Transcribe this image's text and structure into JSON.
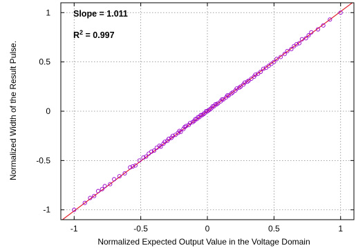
{
  "chart_data": {
    "type": "scatter",
    "xlabel": "Normalized Expected Output Value in the Voltage Domain",
    "ylabel": "Normalized Width of the Result Pulse.",
    "xlim": [
      -1.1,
      1.1
    ],
    "ylim": [
      -1.1,
      1.1
    ],
    "xticks": [
      "-1",
      "-0.5",
      "0",
      "0.5",
      "1"
    ],
    "yticks": [
      "-1",
      "-0.5",
      "0",
      "0.5",
      "1"
    ],
    "grid": true,
    "annotations": {
      "slope": "Slope = 1.011",
      "r2_prefix": "R",
      "r2_sup": "2",
      "r2_value": " = 0.997"
    },
    "colors": {
      "points": "#9900cc",
      "fit_line": "#e0202a",
      "grid": "#888888"
    },
    "fit_line": {
      "slope": 1.011,
      "intercept": 0.0
    },
    "series": [
      {
        "values": [
          [
            -1.0,
            -1.0
          ],
          [
            -0.92,
            -0.93
          ],
          [
            -0.88,
            -0.88
          ],
          [
            -0.85,
            -0.86
          ],
          [
            -0.82,
            -0.81
          ],
          [
            -0.79,
            -0.79
          ],
          [
            -0.77,
            -0.76
          ],
          [
            -0.73,
            -0.74
          ],
          [
            -0.7,
            -0.69
          ],
          [
            -0.66,
            -0.66
          ],
          [
            -0.62,
            -0.63
          ],
          [
            -0.58,
            -0.57
          ],
          [
            -0.56,
            -0.56
          ],
          [
            -0.54,
            -0.55
          ],
          [
            -0.51,
            -0.5
          ],
          [
            -0.48,
            -0.47
          ],
          [
            -0.46,
            -0.46
          ],
          [
            -0.44,
            -0.43
          ],
          [
            -0.42,
            -0.41
          ],
          [
            -0.4,
            -0.4
          ],
          [
            -0.38,
            -0.37
          ],
          [
            -0.36,
            -0.35
          ],
          [
            -0.35,
            -0.36
          ],
          [
            -0.33,
            -0.33
          ],
          [
            -0.32,
            -0.31
          ],
          [
            -0.3,
            -0.3
          ],
          [
            -0.29,
            -0.28
          ],
          [
            -0.27,
            -0.27
          ],
          [
            -0.26,
            -0.25
          ],
          [
            -0.24,
            -0.24
          ],
          [
            -0.22,
            -0.22
          ],
          [
            -0.21,
            -0.2
          ],
          [
            -0.2,
            -0.21
          ],
          [
            -0.18,
            -0.18
          ],
          [
            -0.17,
            -0.16
          ],
          [
            -0.16,
            -0.15
          ],
          [
            -0.14,
            -0.14
          ],
          [
            -0.13,
            -0.12
          ],
          [
            -0.11,
            -0.11
          ],
          [
            -0.1,
            -0.1
          ],
          [
            -0.09,
            -0.08
          ],
          [
            -0.08,
            -0.08
          ],
          [
            -0.07,
            -0.06
          ],
          [
            -0.06,
            -0.06
          ],
          [
            -0.05,
            -0.04
          ],
          [
            -0.04,
            -0.04
          ],
          [
            -0.03,
            -0.03
          ],
          [
            -0.02,
            -0.02
          ],
          [
            -0.01,
            0.0
          ],
          [
            0.0,
            0.0
          ],
          [
            0.01,
            0.01
          ],
          [
            0.02,
            0.02
          ],
          [
            0.03,
            0.03
          ],
          [
            0.04,
            0.05
          ],
          [
            0.05,
            0.05
          ],
          [
            0.06,
            0.07
          ],
          [
            0.07,
            0.07
          ],
          [
            0.08,
            0.08
          ],
          [
            0.1,
            0.1
          ],
          [
            0.11,
            0.12
          ],
          [
            0.12,
            0.12
          ],
          [
            0.14,
            0.14
          ],
          [
            0.15,
            0.16
          ],
          [
            0.16,
            0.16
          ],
          [
            0.18,
            0.18
          ],
          [
            0.19,
            0.19
          ],
          [
            0.21,
            0.21
          ],
          [
            0.22,
            0.23
          ],
          [
            0.24,
            0.24
          ],
          [
            0.25,
            0.25
          ],
          [
            0.27,
            0.27
          ],
          [
            0.28,
            0.29
          ],
          [
            0.3,
            0.3
          ],
          [
            0.31,
            0.31
          ],
          [
            0.33,
            0.33
          ],
          [
            0.35,
            0.35
          ],
          [
            0.36,
            0.37
          ],
          [
            0.38,
            0.38
          ],
          [
            0.4,
            0.4
          ],
          [
            0.42,
            0.43
          ],
          [
            0.44,
            0.44
          ],
          [
            0.46,
            0.46
          ],
          [
            0.48,
            0.48
          ],
          [
            0.5,
            0.5
          ],
          [
            0.52,
            0.53
          ],
          [
            0.55,
            0.55
          ],
          [
            0.58,
            0.58
          ],
          [
            0.6,
            0.61
          ],
          [
            0.63,
            0.63
          ],
          [
            0.65,
            0.66
          ],
          [
            0.67,
            0.68
          ],
          [
            0.69,
            0.69
          ],
          [
            0.71,
            0.73
          ],
          [
            0.74,
            0.74
          ],
          [
            0.76,
            0.77
          ],
          [
            0.78,
            0.8
          ],
          [
            0.83,
            0.83
          ],
          [
            0.87,
            0.87
          ],
          [
            0.92,
            0.93
          ],
          [
            1.0,
            1.0
          ]
        ]
      }
    ]
  }
}
